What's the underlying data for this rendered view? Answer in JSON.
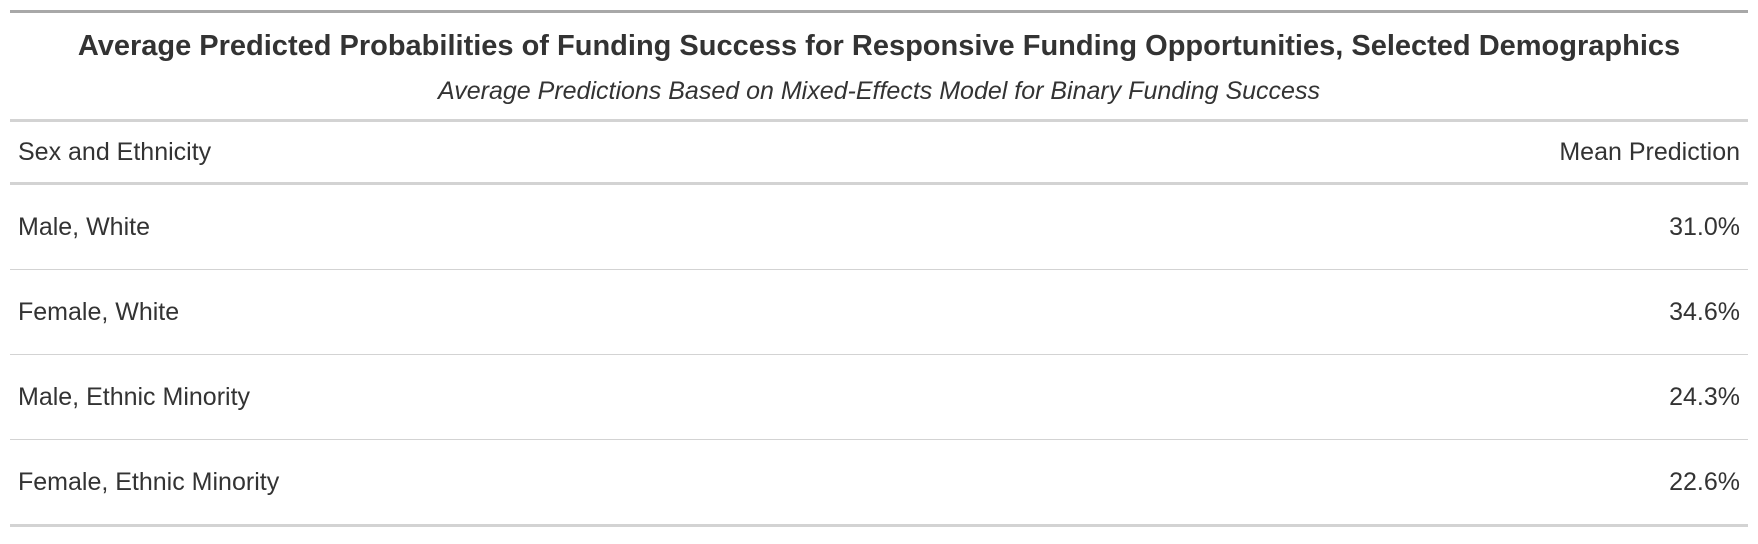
{
  "table": {
    "title": "Average Predicted Probabilities of Funding Success for Responsive Funding Opportunities, Selected Demographics",
    "subtitle": "Average Predictions Based on Mixed-Effects Model for Binary Funding Success",
    "columns": [
      "Sex and Ethnicity",
      "Mean Prediction"
    ],
    "rows": [
      {
        "group": "Male, White",
        "mean_prediction": "31.0%"
      },
      {
        "group": "Female, White",
        "mean_prediction": "34.6%"
      },
      {
        "group": "Male, Ethnic Minority",
        "mean_prediction": "24.3%"
      },
      {
        "group": "Female, Ethnic Minority",
        "mean_prediction": "22.6%"
      }
    ]
  }
}
